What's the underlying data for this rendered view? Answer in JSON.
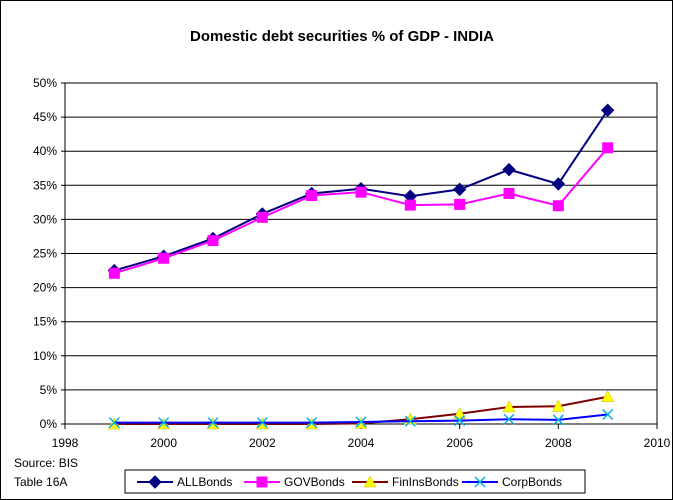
{
  "chart_data": {
    "type": "line",
    "title": "Domestic debt securities  % of GDP - INDIA",
    "xlabel": "",
    "ylabel": "",
    "xlim": [
      1998,
      2010
    ],
    "ylim": [
      0,
      50
    ],
    "x_ticks": [
      "1998",
      "2000",
      "2002",
      "2004",
      "2006",
      "2008",
      "2010"
    ],
    "y_ticks": [
      "0%",
      "5%",
      "10%",
      "15%",
      "20%",
      "25%",
      "30%",
      "35%",
      "40%",
      "45%",
      "50%"
    ],
    "grid": "horizontal",
    "legend_position": "bottom",
    "source_note": [
      "Source:  BIS",
      "Table 16A"
    ],
    "x": [
      1999,
      2000,
      2001,
      2002,
      2003,
      2004,
      2005,
      2006,
      2007,
      2008,
      2009
    ],
    "series": [
      {
        "name": "ALLBonds",
        "color": "#000080",
        "marker": "diamond",
        "values": [
          22.5,
          24.6,
          27.2,
          30.8,
          33.8,
          34.5,
          33.4,
          34.4,
          37.3,
          35.2,
          46.0
        ]
      },
      {
        "name": "GOVBonds",
        "color": "#ff00ff",
        "marker": "square",
        "values": [
          22.1,
          24.3,
          26.9,
          30.3,
          33.5,
          34.0,
          32.1,
          32.2,
          33.8,
          32.0,
          40.5
        ]
      },
      {
        "name": "FinInsBonds",
        "color": "#800000",
        "marker_color": "#ffff00",
        "marker": "triangle",
        "values": [
          0.0,
          0.0,
          0.0,
          0.0,
          0.0,
          0.1,
          0.7,
          1.5,
          2.5,
          2.6,
          4.0
        ]
      },
      {
        "name": "CorpBonds",
        "color": "#0000ff",
        "marker_color": "#00b0f0",
        "marker": "x",
        "values": [
          0.2,
          0.2,
          0.2,
          0.2,
          0.2,
          0.3,
          0.4,
          0.5,
          0.7,
          0.6,
          1.4
        ]
      }
    ]
  }
}
